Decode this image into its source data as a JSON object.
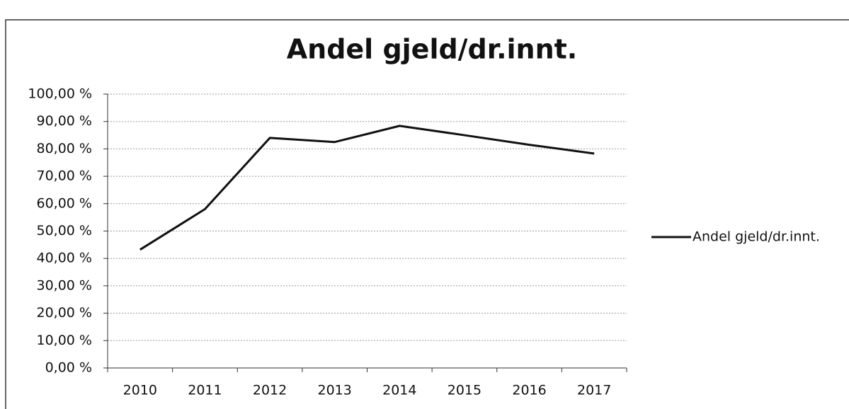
{
  "chart_data": {
    "type": "line",
    "title": "Andel gjeld/dr.innt.",
    "categories": [
      "2010",
      "2011",
      "2012",
      "2013",
      "2014",
      "2015",
      "2016",
      "2017"
    ],
    "series": [
      {
        "name": "Andel gjeld/dr.innt.",
        "color": "#111111",
        "values": [
          43.2,
          58,
          84,
          82.5,
          88.4,
          85,
          81.5,
          78.3
        ]
      }
    ],
    "ylim": [
      0,
      100
    ],
    "yticks": [
      {
        "value": 0,
        "label": "0,00 %"
      },
      {
        "value": 10,
        "label": "10,00 %"
      },
      {
        "value": 20,
        "label": "20,00 %"
      },
      {
        "value": 30,
        "label": "30,00 %"
      },
      {
        "value": 40,
        "label": "40,00 %"
      },
      {
        "value": 50,
        "label": "50,00 %"
      },
      {
        "value": 60,
        "label": "60,00 %"
      },
      {
        "value": 70,
        "label": "70,00 %"
      },
      {
        "value": 80,
        "label": "80,00 %"
      },
      {
        "value": 90,
        "label": "90,00 %"
      },
      {
        "value": 100,
        "label": "100,00 %"
      }
    ],
    "grid": true,
    "legend": "right"
  }
}
